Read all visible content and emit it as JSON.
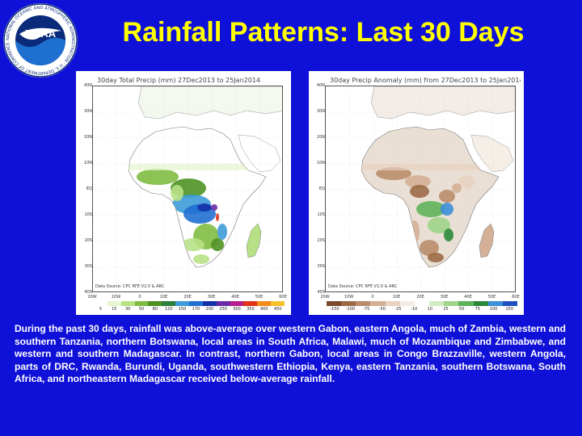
{
  "slide": {
    "title": "Rainfall Patterns: Last 30 Days",
    "caption": "During the past 30 days, rainfall was above-average over western Gabon, eastern Angola, much of Zambia, western and southern Tanzania, northern Botswana, local areas in South Africa, Malawi, much of Mozambique and Zimbabwe, and western and southern Madagascar. In contrast, northern Gabon, local areas in Congo Brazzaville, western Angola, parts of DRC, Rwanda, Burundi, Uganda, southwestern Ethiopia, Kenya, eastern Tanzania, southern Botswana, South Africa, and northeastern Madagascar received below-average rainfall."
  },
  "logo": {
    "text": "NOAA",
    "ring_text": "NATIONAL OCEANIC AND ATMOSPHERIC ADMINISTRATION · U.S. DEPARTMENT OF COMMERCE",
    "colors": {
      "ring": "#ffffff",
      "sea": "#1e6fd0",
      "bird": "#ffffff",
      "dark": "#0a2a7a"
    }
  },
  "maps": [
    {
      "title": "30day Total Precip (mm)  27Dec2013 to 25Jan2014",
      "credit": "Data Source: CPC RFE V2.0 & ARC",
      "y_labels": [
        "40N",
        "35N",
        "30N",
        "25N",
        "20N",
        "15N",
        "10N",
        "5N",
        "EQ",
        "5S",
        "10S",
        "15S",
        "20S",
        "25S",
        "30S",
        "35S",
        "40S"
      ],
      "x_labels": [
        "20W",
        "10W",
        "0",
        "10E",
        "20E",
        "30E",
        "40E",
        "50E",
        "60E"
      ],
      "legend_values": [
        "5",
        "15",
        "30",
        "50",
        "80",
        "120",
        "150",
        "170",
        "200",
        "250",
        "300",
        "350",
        "400",
        "450"
      ],
      "legend_colors": [
        "#ffffff",
        "#e6f5d0",
        "#b8e186",
        "#7fbc41",
        "#4d9221",
        "#2a7f3a",
        "#3d9bd9",
        "#1f6fd1",
        "#1432a8",
        "#6a2aa8",
        "#b51e8c",
        "#e0331a",
        "#f08a1a",
        "#f6c12b"
      ],
      "layer": "total"
    },
    {
      "title": "30day Precip Anomaly (mm) from 27Dec2013 to 25Jan2014",
      "credit": "Data Source: CPC RFE V2.0 & ARC",
      "y_labels": [
        "40N",
        "35N",
        "30N",
        "25N",
        "20N",
        "15N",
        "10N",
        "5N",
        "EQ",
        "5S",
        "10S",
        "15S",
        "20S",
        "25S",
        "30S",
        "35S",
        "40S"
      ],
      "x_labels": [
        "20W",
        "10W",
        "0",
        "10E",
        "20E",
        "30E",
        "40E",
        "50E",
        "60E"
      ],
      "legend_values": [
        "-150",
        "-100",
        "-75",
        "-50",
        "-25",
        "-10",
        "10",
        "25",
        "50",
        "75",
        "100",
        "150"
      ],
      "legend_colors": [
        "#7a4a2a",
        "#9c6a45",
        "#b98d6a",
        "#d4b096",
        "#e8d2c0",
        "#f3ece4",
        "#ffffff",
        "#d3ecc2",
        "#9fd48a",
        "#5fb35a",
        "#2a8a3a",
        "#3d8fd9",
        "#1f4fbf"
      ],
      "layer": "anomaly"
    }
  ]
}
